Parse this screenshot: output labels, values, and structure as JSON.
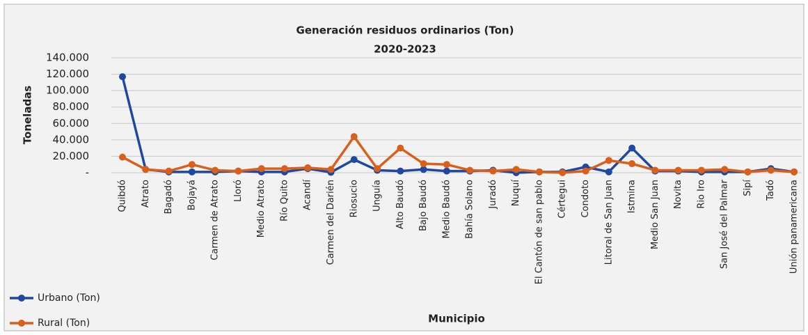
{
  "chart_data": {
    "type": "line",
    "title": "Generación residuos ordinarios (Ton)",
    "subtitle": "2020-2023",
    "y_label": "Toneladas",
    "x_label": "Municipio",
    "categories": [
      "Quibdó",
      "Atrato",
      "Bagadó",
      "Bojayá",
      "Carmen de Atrato",
      "Lloró",
      "Medio Atrato",
      "Río Quito",
      "Acandí",
      "Carmen del Darién",
      "Riosucio",
      "Unguía",
      "Alto Baudó",
      "Bajo Baudó",
      "Medio Baudó",
      "Bahía Solano",
      "Juradó",
      "Nuquí",
      "El Cantón de san pablo",
      "Cértegui",
      "Condoto",
      "Litoral de San Juan",
      "Istmina",
      "Medio San Juan",
      "Novita",
      "Rio Iro",
      "San José del Palmar",
      "Sipí",
      "Tadó",
      "Unión panamericana"
    ],
    "series": [
      {
        "name": "Urbano (Ton)",
        "color": "#1f48a0",
        "values": [
          117000,
          4000,
          1000,
          1000,
          1000,
          2000,
          1000,
          1000,
          5000,
          500,
          16000,
          3000,
          2000,
          4000,
          2000,
          2000,
          3000,
          0,
          1000,
          1000,
          7000,
          1000,
          30000,
          2000,
          2000,
          1000,
          1000,
          1000,
          5000,
          1000
        ]
      },
      {
        "name": "Rural (Ton)",
        "color": "#d9601a",
        "values": [
          19000,
          4000,
          2000,
          10000,
          3000,
          2000,
          5000,
          5000,
          6000,
          4000,
          44000,
          5000,
          30000,
          11000,
          10000,
          3000,
          2000,
          4000,
          1000,
          0,
          2000,
          15000,
          11000,
          3000,
          3000,
          3000,
          4000,
          1000,
          3000,
          1000
        ]
      }
    ],
    "ylim": [
      0,
      140000
    ],
    "yticks": [
      {
        "value": 0,
        "label": "-"
      },
      {
        "value": 20000,
        "label": "20.000"
      },
      {
        "value": 40000,
        "label": "40.000"
      },
      {
        "value": 60000,
        "label": "60.000"
      },
      {
        "value": 80000,
        "label": "80.000"
      },
      {
        "value": 100000,
        "label": "100.000"
      },
      {
        "value": 120000,
        "label": "120.000"
      },
      {
        "value": 140000,
        "label": "140.000"
      }
    ],
    "grid": true,
    "legend": "bottom-left"
  }
}
